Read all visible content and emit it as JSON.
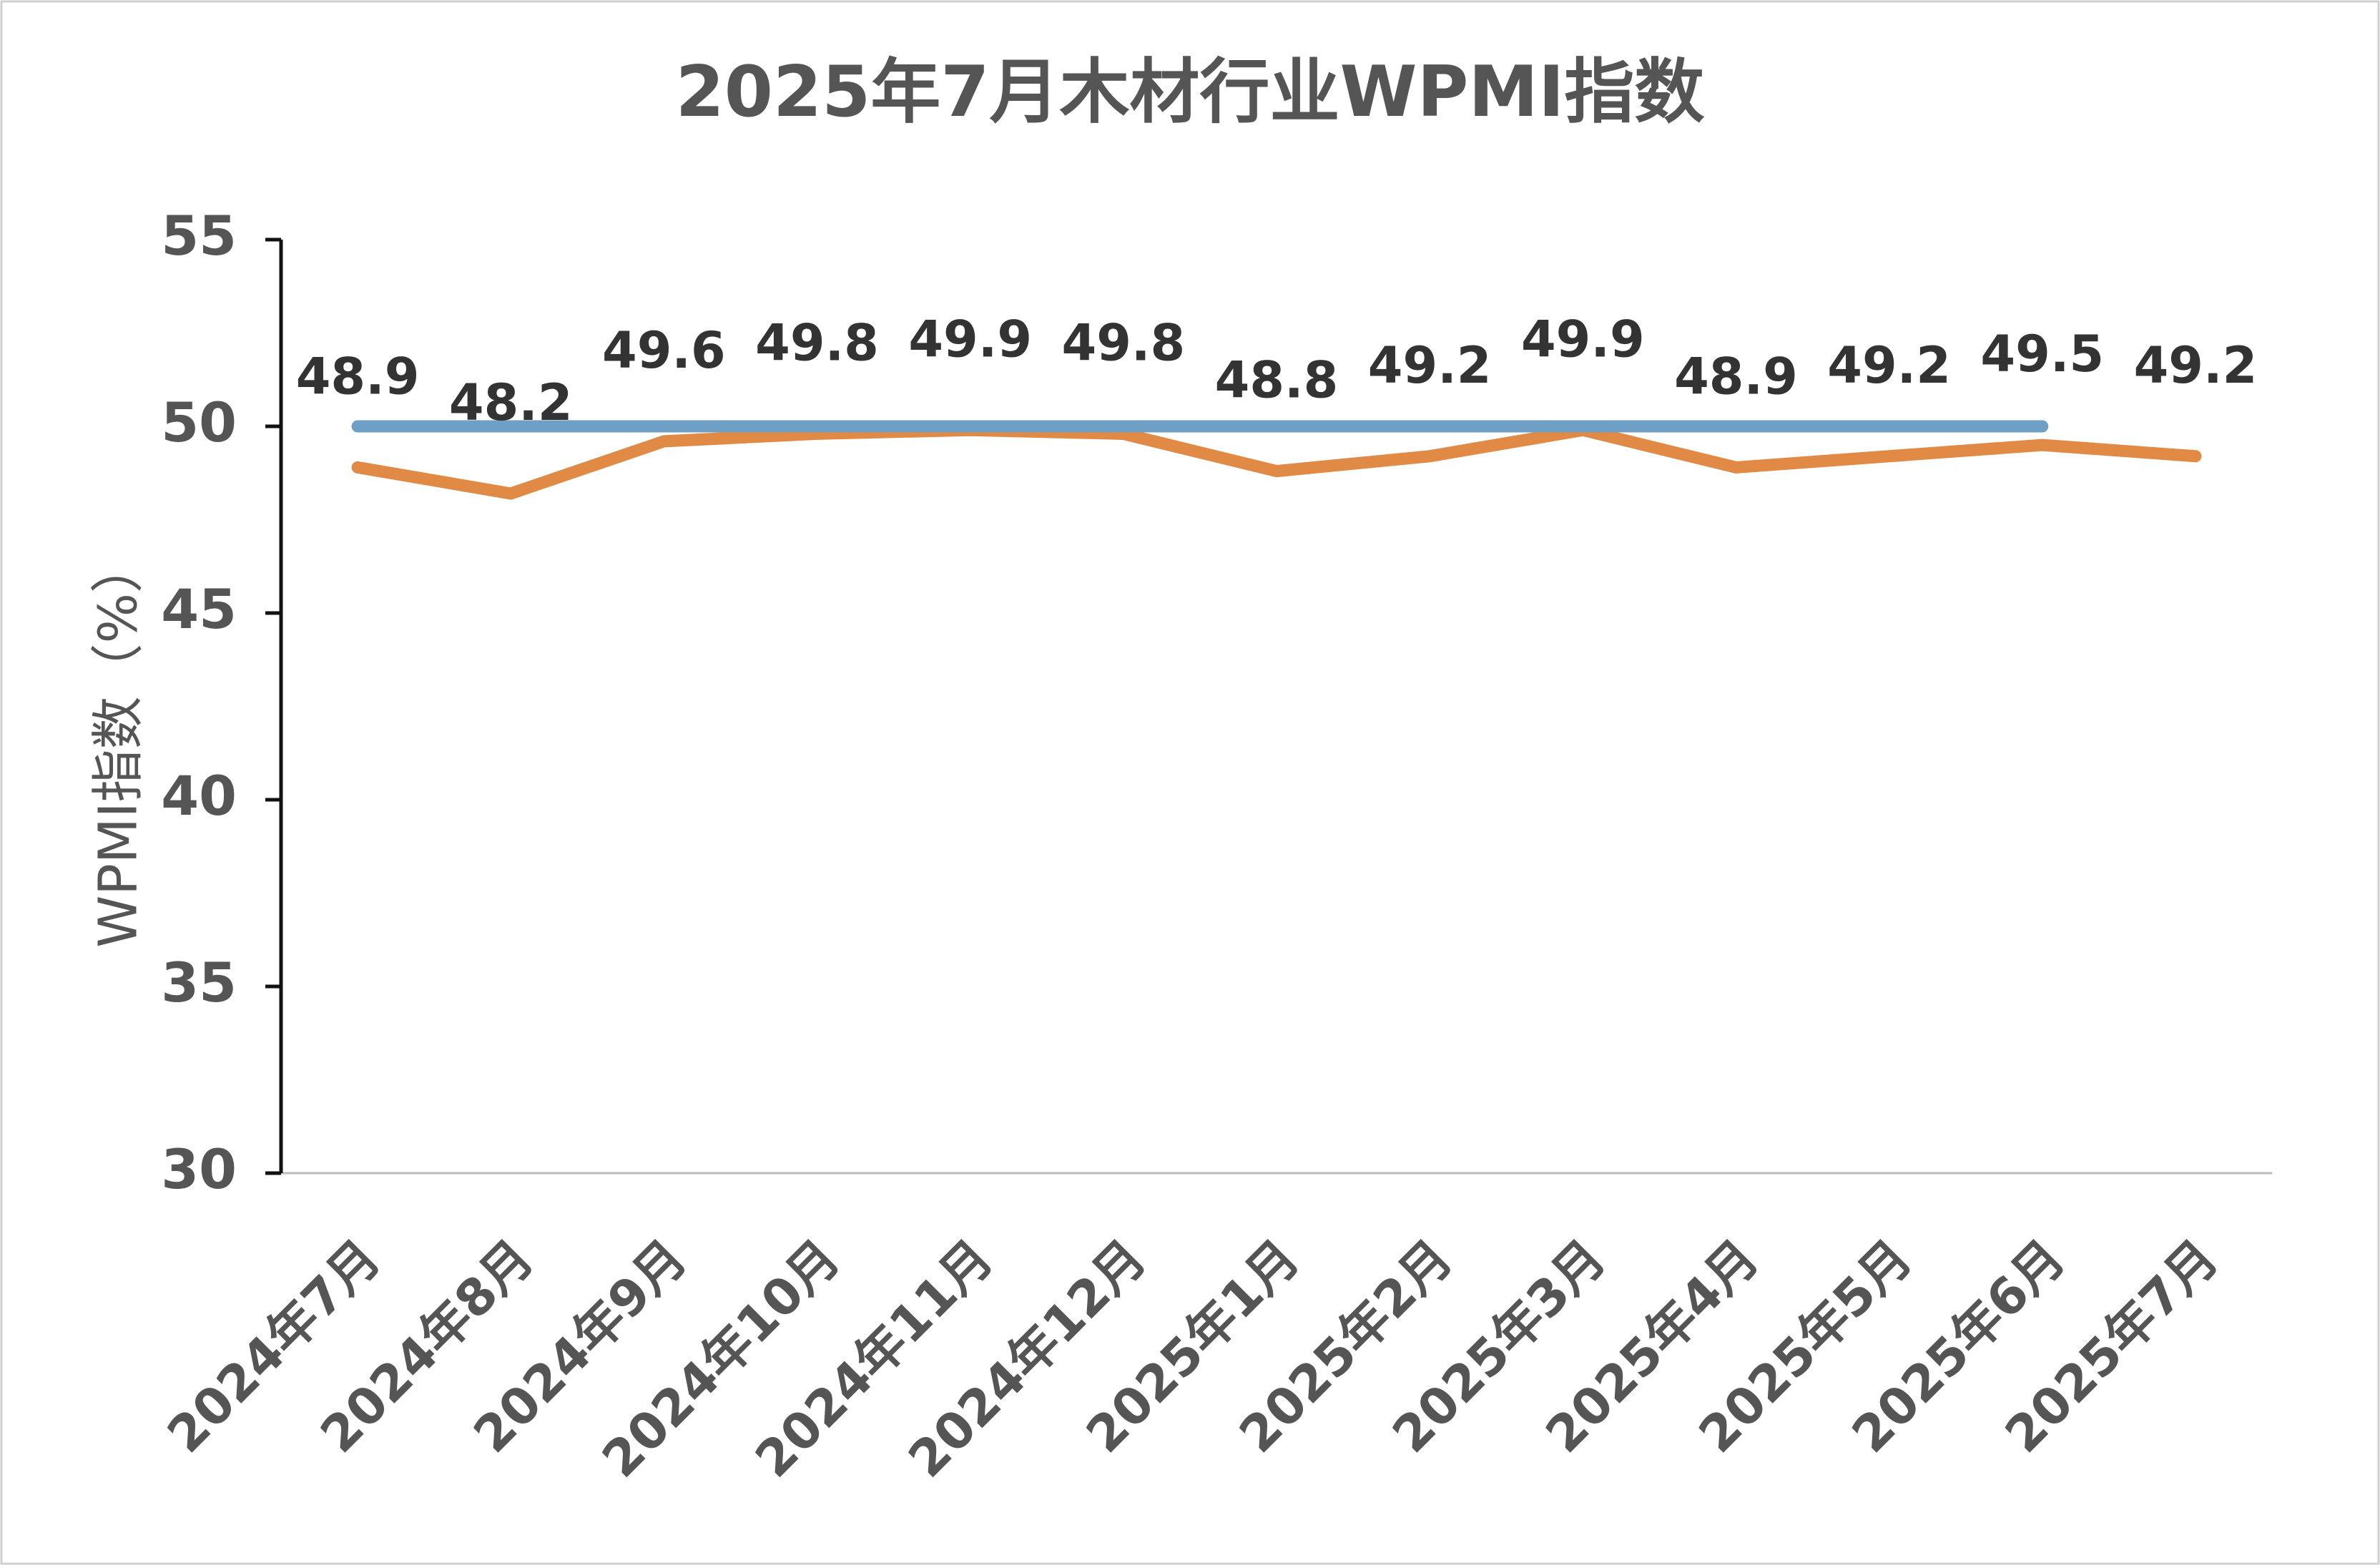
{
  "chart_data": {
    "type": "line",
    "title": "2025年7月木材行业WPMI指数",
    "y_label": "WPMI指数（%）",
    "categories": [
      "2024年7月",
      "2024年8月",
      "2024年9月",
      "2024年10月",
      "2024年11月",
      "2024年12月",
      "2025年1月",
      "2025年2月",
      "2025年3月",
      "2025年4月",
      "2025年5月",
      "2025年6月",
      "2025年7月"
    ],
    "series": [
      {
        "color": "#e08a45",
        "values": [
          48.9,
          48.2,
          49.6,
          49.8,
          49.9,
          49.8,
          48.8,
          49.2,
          49.9,
          48.9,
          49.2,
          49.5,
          49.2
        ],
        "data_labels": true
      },
      {
        "color": "#6f9fc4",
        "values": [
          50,
          50,
          50,
          50,
          50,
          50,
          50,
          50,
          50,
          50,
          50,
          50,
          null
        ],
        "data_labels": false
      }
    ],
    "ylim": [
      30,
      55
    ],
    "yticks": [
      30,
      35,
      40,
      45,
      50,
      55
    ],
    "grid": false
  }
}
